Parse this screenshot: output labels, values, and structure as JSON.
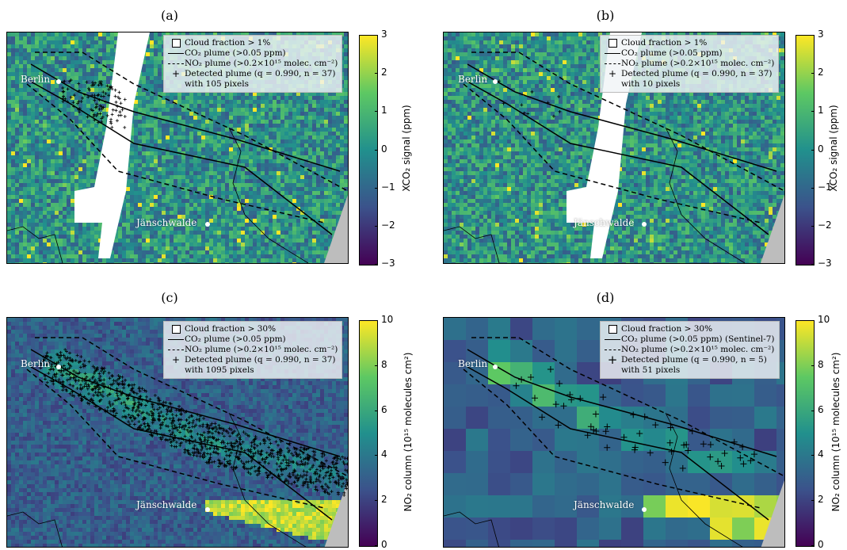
{
  "colors": {
    "cmap": [
      "#440154",
      "#3b528b",
      "#21908d",
      "#5dc863",
      "#fde725"
    ],
    "cloud_a": "#ffffff",
    "cloud_b": "#bdbdbd",
    "plume_line": "#000000",
    "city_text": "#ffffff"
  },
  "chart_data": [
    {
      "panel": "a",
      "type": "heatmap",
      "title": "(a)",
      "quantity": "XCO2",
      "colorbar": {
        "label": "XCO₂ signal (ppm)",
        "min": -3,
        "max": 3,
        "ticks": [
          "3",
          "2",
          "1",
          "0",
          "−1",
          "−2",
          "−3"
        ]
      },
      "legend": {
        "cloud": "Cloud fraction > 1%",
        "co2": "CO₂ plume (>0.05 ppm)",
        "no2": "NO₂ plume (>0.2×10¹⁵ molec. cm⁻²)",
        "detected": "Detected plume (q = 0.990, n = 37)",
        "detected_pixels": "with 105 pixels"
      },
      "cities": [
        {
          "name": "Berlin"
        },
        {
          "name": "Jänschwalde"
        }
      ],
      "detected_pixels": 105
    },
    {
      "panel": "b",
      "type": "heatmap",
      "title": "(b)",
      "quantity": "XCO2",
      "colorbar": {
        "label": "XCO₂ signal (ppm)",
        "min": -3,
        "max": 3,
        "ticks": [
          "3",
          "2",
          "1",
          "0",
          "−1",
          "−2",
          "−3"
        ]
      },
      "legend": {
        "cloud": "Cloud fraction > 1%",
        "co2": "CO₂ plume (>0.05 ppm)",
        "no2": "NO₂ plume (>0.2×10¹⁵ molec. cm⁻²)",
        "detected": "Detected plume (q = 0.990, n = 37)",
        "detected_pixels": "with 10 pixels"
      },
      "cities": [
        {
          "name": "Berlin"
        },
        {
          "name": "Jänschwalde"
        }
      ],
      "detected_pixels": 10
    },
    {
      "panel": "c",
      "type": "heatmap",
      "title": "(c)",
      "quantity": "NO2",
      "colorbar": {
        "label": "NO₂ column (10¹⁵ molecules cm²)",
        "min": 0,
        "max": 10,
        "ticks": [
          "10",
          "8",
          "6",
          "4",
          "2",
          "0"
        ]
      },
      "legend": {
        "cloud": "Cloud fraction > 30%",
        "co2": "CO₂ plume (>0.05 ppm)",
        "no2": "NO₂ plume (>0.2×10¹⁵ molec. cm⁻²)",
        "detected": "Detected plume (q = 0.990, n = 37)",
        "detected_pixels": "with 1095 pixels"
      },
      "cities": [
        {
          "name": "Berlin"
        },
        {
          "name": "Jänschwalde"
        }
      ],
      "detected_pixels": 1095
    },
    {
      "panel": "d",
      "type": "heatmap",
      "title": "(d)",
      "quantity": "NO2",
      "colorbar": {
        "label": "NO₂ column (10¹⁵ molecules cm²)",
        "min": 0,
        "max": 10,
        "ticks": [
          "10",
          "8",
          "6",
          "4",
          "2",
          "0"
        ]
      },
      "legend": {
        "cloud": "Cloud fraction > 30%",
        "co2": "CO₂ plume (>0.05 ppm) (Sentinel-7)",
        "no2": "NO₂ plume (>0.2×10¹⁵ molec. cm⁻²)",
        "detected": "Detected plume (q = 0.990, n = 5)",
        "detected_pixels": "with 51 pixels"
      },
      "cities": [
        {
          "name": "Berlin"
        },
        {
          "name": "Jänschwalde"
        }
      ],
      "detected_pixels": 51
    }
  ]
}
